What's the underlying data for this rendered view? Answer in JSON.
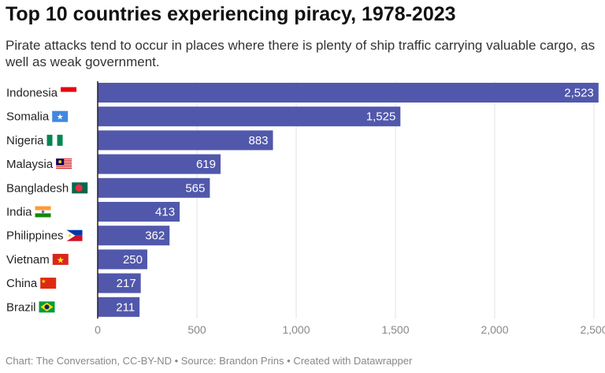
{
  "title": "Top 10 countries experiencing piracy, 1978-2023",
  "subtitle": "Pirate attacks tend to occur in places where there is plenty of ship traffic carrying valuable cargo, as well as weak government.",
  "footer": "Chart: The Conversation, CC-BY-ND • Source: Brandon Prins • Created with Datawrapper",
  "chart_data": {
    "type": "bar",
    "orientation": "horizontal",
    "categories": [
      "Indonesia",
      "Somalia",
      "Nigeria",
      "Malaysia",
      "Bangladesh",
      "India",
      "Philippines",
      "Vietnam",
      "China",
      "Brazil"
    ],
    "values": [
      2523,
      1525,
      883,
      619,
      565,
      413,
      362,
      250,
      217,
      211
    ],
    "value_labels": [
      "2,523",
      "1,525",
      "883",
      "619",
      "565",
      "413",
      "362",
      "250",
      "217",
      "211"
    ],
    "xlim": [
      0,
      2523
    ],
    "xticks": [
      0,
      500,
      1000,
      1500,
      2000,
      2500
    ],
    "xtick_labels": [
      "0",
      "500",
      "1,000",
      "1,500",
      "2,000",
      "2,500"
    ],
    "grid": true,
    "bar_color": "#5158ab",
    "flag_icons": [
      "indonesia-flag",
      "somalia-flag",
      "nigeria-flag",
      "malaysia-flag",
      "bangladesh-flag",
      "india-flag",
      "philippines-flag",
      "vietnam-flag",
      "china-flag",
      "brazil-flag"
    ]
  }
}
